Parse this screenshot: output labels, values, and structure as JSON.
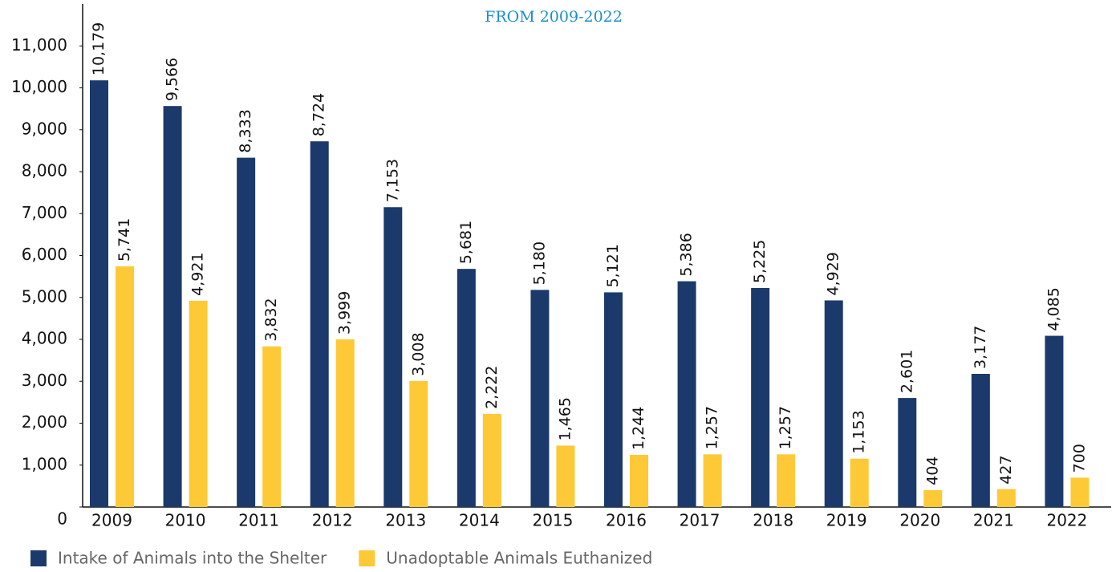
{
  "chart_data": {
    "type": "bar",
    "title": "FROM 2009-2022",
    "categories": [
      "2009",
      "2010",
      "2011",
      "2012",
      "2013",
      "2014",
      "2015",
      "2016",
      "2017",
      "2018",
      "2019",
      "2020",
      "2021",
      "2022"
    ],
    "series": [
      {
        "name": "Intake of Animals into the Shelter",
        "color": "#1b3a6b",
        "values": [
          10179,
          9566,
          8333,
          8724,
          7153,
          5681,
          5180,
          5121,
          5386,
          5225,
          4929,
          2601,
          3177,
          4085
        ],
        "value_labels": [
          "10,179",
          "9,566",
          "8,333",
          "8,724",
          "7,153",
          "5,681",
          "5,180",
          "5,121",
          "5,386",
          "5,225",
          "4,929",
          "2,601",
          "3,177",
          "4,085"
        ]
      },
      {
        "name": "Unadoptable Animals Euthanized",
        "color": "#fdc936",
        "values": [
          5741,
          4921,
          3832,
          3999,
          3008,
          2222,
          1465,
          1244,
          1257,
          1257,
          1153,
          404,
          427,
          700
        ],
        "value_labels": [
          "5,741",
          "4,921",
          "3,832",
          "3,999",
          "3,008",
          "2,222",
          "1,465",
          "1,244",
          "1,257",
          "1,257",
          "1,153",
          "404",
          "427",
          "700"
        ]
      }
    ],
    "ylim": [
      0,
      12000
    ],
    "yticks": [
      0,
      {
        "value": 1000,
        "label": "1,000"
      },
      {
        "value": 2000,
        "label": "2,000"
      },
      {
        "value": 3000,
        "label": "3,000"
      },
      {
        "value": 4000,
        "label": "4,000"
      },
      {
        "value": 5000,
        "label": "5,000"
      },
      {
        "value": 6000,
        "label": "6,000"
      },
      {
        "value": 7000,
        "label": "7,000"
      },
      {
        "value": 8000,
        "label": "8,000"
      },
      {
        "value": 9000,
        "label": "9,000"
      },
      {
        "value": 10000,
        "label": "10,000"
      },
      {
        "value": 11000,
        "label": "11,000"
      }
    ],
    "legend": "bottom-left"
  }
}
